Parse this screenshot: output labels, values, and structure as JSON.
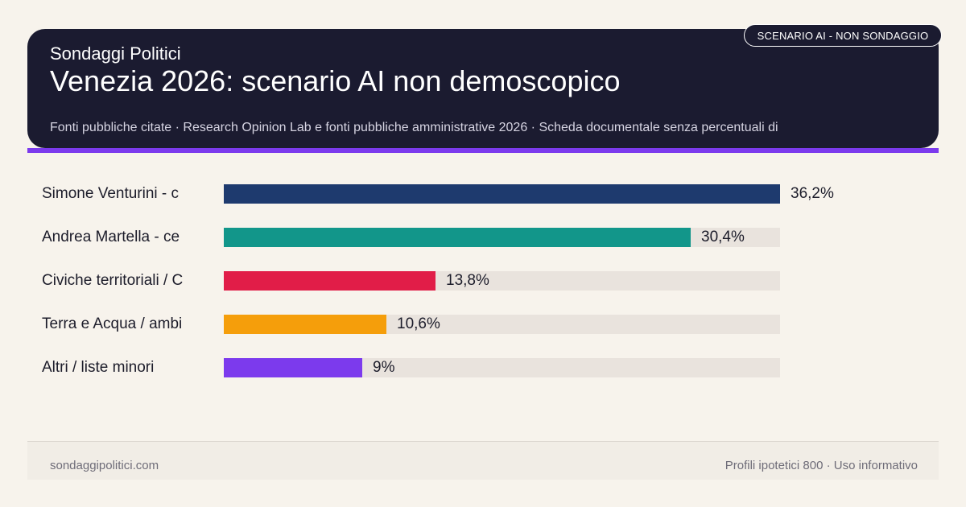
{
  "header": {
    "brand": "Sondaggi Politici",
    "title": "Venezia 2026: scenario AI non demoscopico",
    "sources": "Fonti pubbliche citate · Research Opinion Lab e fonti pubbliche amministrative 2026 · Scheda documentale senza percentuali di",
    "tag": "SCENARIO AI - NON SONDAGGIO"
  },
  "footer": {
    "site": "sondaggipolitici.com",
    "note": "Profili ipotetici 800 · Uso informativo"
  },
  "colors": {
    "header_bg": "#1b1b30",
    "accent": "#7c3aed",
    "background": "#f7f3ec",
    "track": "#e9e3dd"
  },
  "chart_data": {
    "type": "bar",
    "orientation": "horizontal",
    "categories": [
      "Simone Venturini - c",
      "Andrea Martella - ce",
      "Civiche territoriali / C",
      "Terra e Acqua / ambi",
      "Altri / liste minori"
    ],
    "values": [
      36.2,
      30.4,
      13.8,
      10.6,
      9
    ],
    "value_labels": [
      "36,2%",
      "30,4%",
      "13,8%",
      "10,6%",
      "9%"
    ],
    "colors": [
      "#1e3a6e",
      "#12968a",
      "#e11d48",
      "#f59e0b",
      "#7c3aed"
    ],
    "xlim": [
      0,
      36.2
    ],
    "grid": false,
    "legend": "none"
  }
}
